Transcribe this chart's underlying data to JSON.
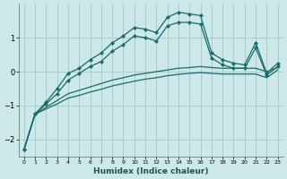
{
  "xlabel": "Humidex (Indice chaleur)",
  "background_color": "#cce8e8",
  "grid_color": "#aacccc",
  "line_color": "#1a6b6b",
  "xlim": [
    -0.5,
    23.5
  ],
  "ylim": [
    -2.5,
    2.0
  ],
  "yticks": [
    -2,
    -1,
    0,
    1
  ],
  "xticks": [
    0,
    1,
    2,
    3,
    4,
    5,
    6,
    7,
    8,
    9,
    10,
    11,
    12,
    13,
    14,
    15,
    16,
    17,
    18,
    19,
    20,
    21,
    22,
    23
  ],
  "series": {
    "line1_x": [
      0,
      1,
      2,
      3,
      4,
      5,
      6,
      7,
      8,
      9,
      10,
      11,
      12,
      13,
      14,
      15,
      16,
      17,
      18,
      19,
      20,
      21,
      22,
      23
    ],
    "line1_y": [
      -2.3,
      -1.25,
      -0.9,
      -0.5,
      -0.05,
      0.1,
      0.35,
      0.55,
      0.85,
      1.05,
      1.3,
      1.25,
      1.15,
      1.6,
      1.75,
      1.7,
      1.65,
      0.55,
      0.35,
      0.25,
      0.2,
      0.85,
      -0.05,
      0.25
    ],
    "line2_x": [
      0,
      1,
      2,
      3,
      4,
      5,
      6,
      7,
      8,
      9,
      10,
      11,
      12,
      13,
      14,
      15,
      16,
      17,
      18,
      19,
      20,
      21,
      22,
      23
    ],
    "line2_y": [
      -2.3,
      -1.25,
      -0.95,
      -0.65,
      -0.25,
      -0.05,
      0.15,
      0.3,
      0.6,
      0.8,
      1.05,
      1.0,
      0.9,
      1.35,
      1.45,
      1.45,
      1.4,
      0.4,
      0.2,
      0.1,
      0.1,
      0.7,
      -0.1,
      0.15
    ],
    "line3_x": [
      0,
      1,
      2,
      3,
      4,
      5,
      6,
      7,
      8,
      9,
      10,
      11,
      12,
      13,
      14,
      15,
      16,
      17,
      18,
      19,
      20,
      21,
      22,
      23
    ],
    "line3_y": [
      -2.3,
      -1.25,
      -1.05,
      -0.85,
      -0.65,
      -0.55,
      -0.45,
      -0.35,
      -0.25,
      -0.18,
      -0.1,
      -0.05,
      0.0,
      0.05,
      0.1,
      0.12,
      0.15,
      0.12,
      0.1,
      0.1,
      0.1,
      0.1,
      0.0,
      0.12
    ],
    "line4_x": [
      0,
      1,
      2,
      3,
      4,
      5,
      6,
      7,
      8,
      9,
      10,
      11,
      12,
      13,
      14,
      15,
      16,
      17,
      18,
      19,
      20,
      21,
      22,
      23
    ],
    "line4_y": [
      -2.3,
      -1.25,
      -1.1,
      -0.95,
      -0.78,
      -0.7,
      -0.6,
      -0.52,
      -0.42,
      -0.35,
      -0.28,
      -0.22,
      -0.18,
      -0.12,
      -0.08,
      -0.05,
      -0.03,
      -0.05,
      -0.07,
      -0.07,
      -0.07,
      -0.07,
      -0.18,
      0.05
    ]
  }
}
